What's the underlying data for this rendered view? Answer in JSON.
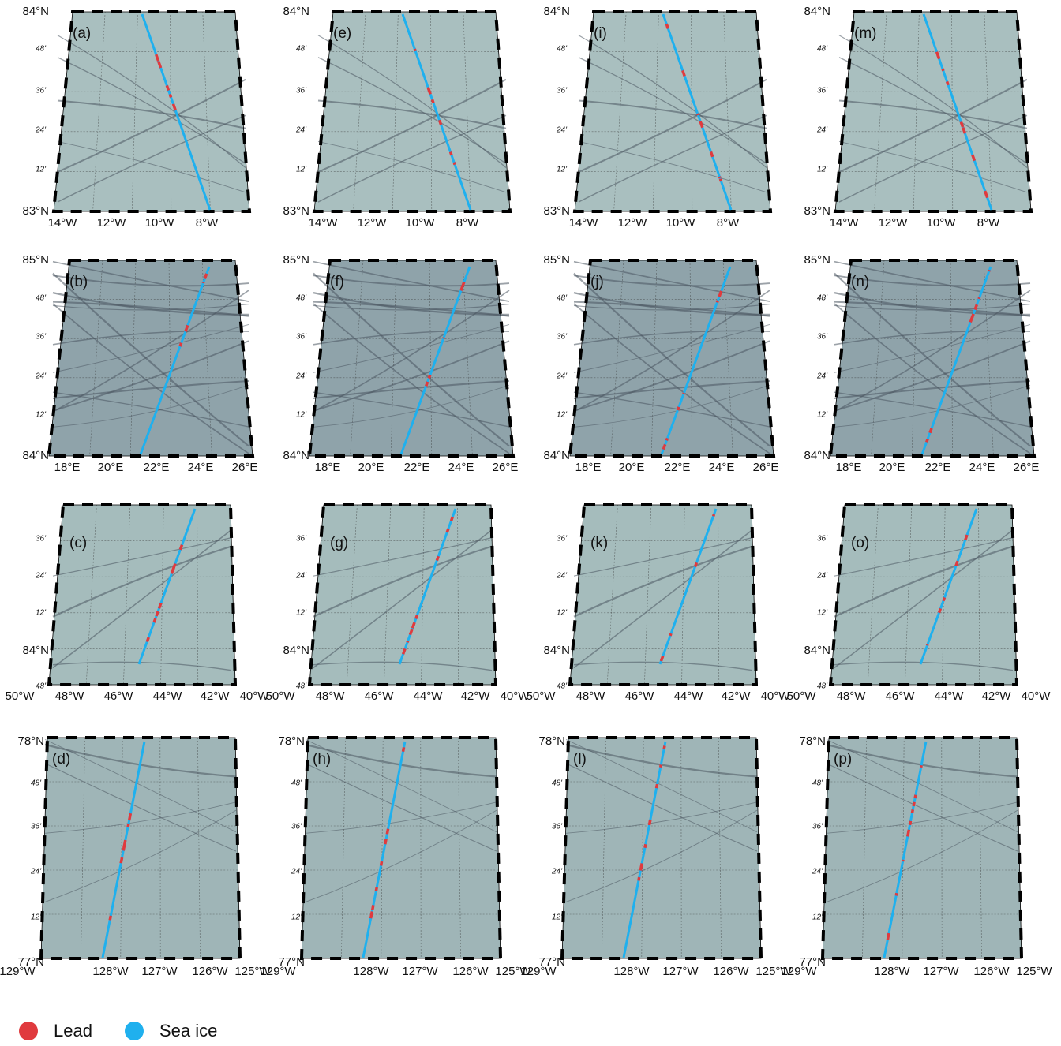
{
  "rows": [
    {
      "lat_labels": [
        "84°N",
        "48'",
        "36'",
        "24'",
        "12'",
        "83°N"
      ],
      "lon_labels": [
        "14°W",
        "12°W",
        "10°W",
        "8°W"
      ],
      "panels": [
        "(a)",
        "(e)",
        "(i)",
        "(m)"
      ]
    },
    {
      "lat_labels": [
        "85°N",
        "48'",
        "36'",
        "24'",
        "12'",
        "84°N"
      ],
      "lon_labels": [
        "18°E",
        "20°E",
        "22°E",
        "24°E",
        "26°E"
      ],
      "panels": [
        "(b)",
        "(f)",
        "(j)",
        "(n)"
      ]
    },
    {
      "lat_labels": [
        "36'",
        "24'",
        "12'",
        "84°N",
        "48'"
      ],
      "lon_labels": [
        "50°W",
        "48°W",
        "46°W",
        "44°W",
        "42°W",
        "40°W"
      ],
      "panels": [
        "(c)",
        "(g)",
        "(k)",
        "(o)"
      ]
    },
    {
      "lat_labels": [
        "78°N",
        "48'",
        "36'",
        "24'",
        "12'",
        "77°N"
      ],
      "lon_labels": [
        "129°W",
        "128°W",
        "127°W",
        "126°W",
        "125°W"
      ],
      "panels": [
        "(d)",
        "(h)",
        "(l)",
        "(p)"
      ]
    }
  ],
  "legend": [
    {
      "label": "Lead",
      "color": "#e03a3e"
    },
    {
      "label": "Sea ice",
      "color": "#1fb0ee"
    }
  ]
}
